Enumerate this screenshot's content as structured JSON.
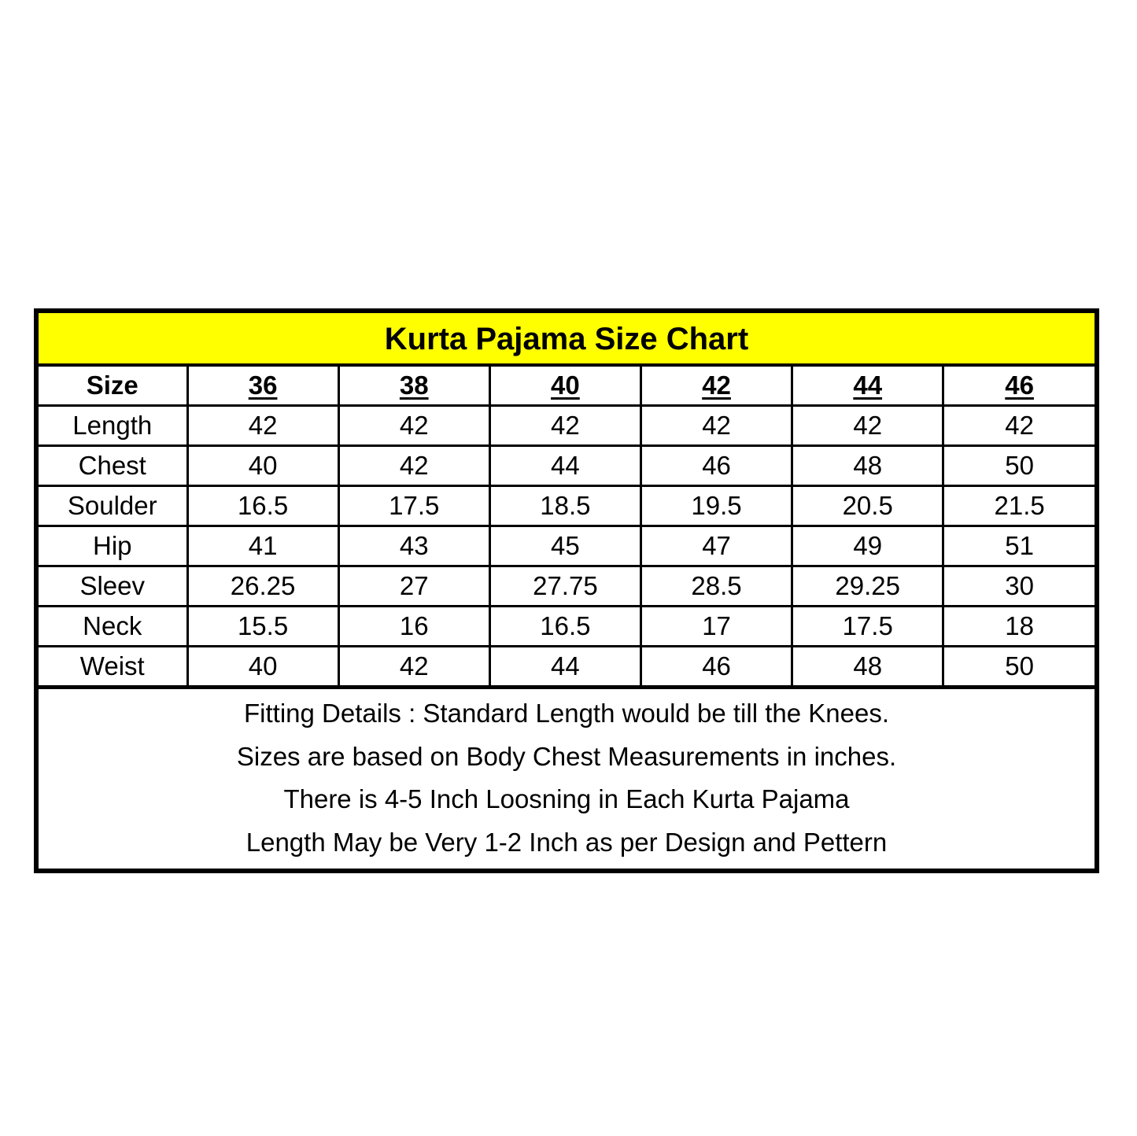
{
  "title": "Kurta Pajama Size Chart",
  "colors": {
    "title_bg": "#ffff00",
    "border": "#000000"
  },
  "table": {
    "header": {
      "label": "Size",
      "sizes": [
        "36",
        "38",
        "40",
        "42",
        "44",
        "46"
      ]
    },
    "rows": [
      {
        "label": "Length",
        "values": [
          "42",
          "42",
          "42",
          "42",
          "42",
          "42"
        ]
      },
      {
        "label": "Chest",
        "values": [
          "40",
          "42",
          "44",
          "46",
          "48",
          "50"
        ]
      },
      {
        "label": "Soulder",
        "values": [
          "16.5",
          "17.5",
          "18.5",
          "19.5",
          "20.5",
          "21.5"
        ]
      },
      {
        "label": "Hip",
        "values": [
          "41",
          "43",
          "45",
          "47",
          "49",
          "51"
        ]
      },
      {
        "label": "Sleev",
        "values": [
          "26.25",
          "27",
          "27.75",
          "28.5",
          "29.25",
          "30"
        ]
      },
      {
        "label": "Neck",
        "values": [
          "15.5",
          "16",
          "16.5",
          "17",
          "17.5",
          "18"
        ]
      },
      {
        "label": "Weist",
        "values": [
          "40",
          "42",
          "44",
          "46",
          "48",
          "50"
        ]
      }
    ]
  },
  "notes": [
    "Fitting Details : Standard Length would be till the Knees.",
    "Sizes are based on Body Chest Measurements in inches.",
    "There is 4-5 Inch Loosning in Each Kurta Pajama",
    "Length May be Very 1-2 Inch as per Design and Pettern"
  ]
}
